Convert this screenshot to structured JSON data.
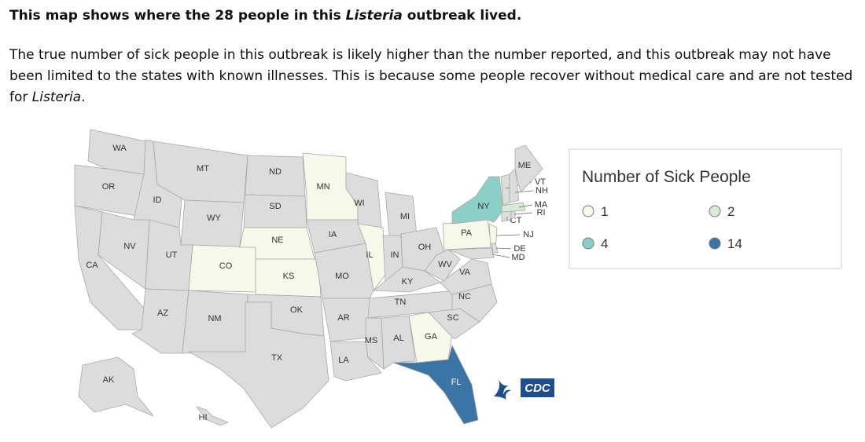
{
  "heading": [
    "This map shows where the 28 people in this ",
    "Listeria",
    " outbreak lived."
  ],
  "paragraph": [
    "The true number of sick people in this outbreak is likely higher than the number reported, and this outbreak may not have been limited to the states with known illnesses. This is because some people recover without medical care and are not tested for ",
    "Listeria",
    "."
  ],
  "map": {
    "states": [
      {
        "label": "WA",
        "color": "#dcdcdc"
      },
      {
        "label": "OR",
        "color": "#dcdcdc"
      },
      {
        "label": "CA",
        "color": "#dcdcdc"
      },
      {
        "label": "ID",
        "color": "#dcdcdc"
      },
      {
        "label": "NV",
        "color": "#dcdcdc"
      },
      {
        "label": "MT",
        "color": "#dcdcdc"
      },
      {
        "label": "WY",
        "color": "#dcdcdc"
      },
      {
        "label": "UT",
        "color": "#dcdcdc"
      },
      {
        "label": "AZ",
        "color": "#dcdcdc"
      },
      {
        "label": "CO",
        "color": "#f6f8e9"
      },
      {
        "label": "NM",
        "color": "#dcdcdc"
      },
      {
        "label": "ND",
        "color": "#dcdcdc"
      },
      {
        "label": "SD",
        "color": "#dcdcdc"
      },
      {
        "label": "NE",
        "color": "#f6f8e9"
      },
      {
        "label": "KS",
        "color": "#f6f8e9"
      },
      {
        "label": "OK",
        "color": "#dcdcdc"
      },
      {
        "label": "TX",
        "color": "#dcdcdc"
      },
      {
        "label": "MN",
        "color": "#f6f8e9"
      },
      {
        "label": "IA",
        "color": "#dcdcdc"
      },
      {
        "label": "MO",
        "color": "#dcdcdc"
      },
      {
        "label": "AR",
        "color": "#dcdcdc"
      },
      {
        "label": "LA",
        "color": "#dcdcdc"
      },
      {
        "label": "WI",
        "color": "#dcdcdc"
      },
      {
        "label": "IL",
        "color": "#f6f8e9"
      },
      {
        "label": "MI",
        "color": "#dcdcdc"
      },
      {
        "label": "IN",
        "color": "#dcdcdc"
      },
      {
        "label": "OH",
        "color": "#dcdcdc"
      },
      {
        "label": "KY",
        "color": "#dcdcdc"
      },
      {
        "label": "TN",
        "color": "#dcdcdc"
      },
      {
        "label": "MS",
        "color": "#dcdcdc"
      },
      {
        "label": "AL",
        "color": "#dcdcdc"
      },
      {
        "label": "GA",
        "color": "#f6f8e9"
      },
      {
        "label": "FL",
        "color": "#3b75a6"
      },
      {
        "label": "SC",
        "color": "#dcdcdc"
      },
      {
        "label": "NC",
        "color": "#dcdcdc"
      },
      {
        "label": "VA",
        "color": "#dcdcdc"
      },
      {
        "label": "WV",
        "color": "#dcdcdc"
      },
      {
        "label": "PA",
        "color": "#f6f8e9"
      },
      {
        "label": "NY",
        "color": "#8bcfc6"
      },
      {
        "label": "NJ",
        "color": "#f6f8e9"
      },
      {
        "label": "MD",
        "color": "#dcdcdc"
      },
      {
        "label": "DE",
        "color": "#dcdcdc"
      },
      {
        "label": "CT",
        "color": "#dcdcdc"
      },
      {
        "label": "RI",
        "color": "#dcdcdc"
      },
      {
        "label": "MA",
        "color": "#d4ecd0"
      },
      {
        "label": "VT",
        "color": "#dcdcdc"
      },
      {
        "label": "NH",
        "color": "#dcdcdc"
      },
      {
        "label": "ME",
        "color": "#dcdcdc"
      },
      {
        "label": "AK",
        "color": "#dcdcdc"
      },
      {
        "label": "HI",
        "color": "#dcdcdc"
      }
    ],
    "legend": {
      "title": "Number of Sick People",
      "items": [
        {
          "label": 1,
          "color": "#f6f8e9"
        },
        {
          "label": 2,
          "color": "#d4ecd0"
        },
        {
          "label": 4,
          "color": "#8bcfc6"
        },
        {
          "label": 14,
          "color": "#3b75a6"
        }
      ]
    },
    "logo": "CDC"
  }
}
